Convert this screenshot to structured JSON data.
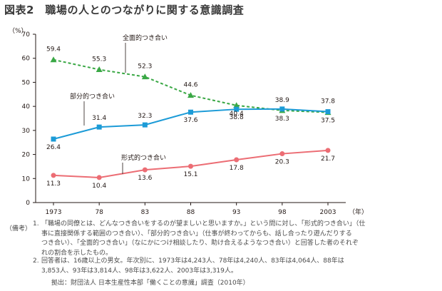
{
  "title": "図表2　職場の人とのつながりに関する意識調査",
  "chart_data": {
    "type": "line",
    "categories": [
      "1973",
      "78",
      "83",
      "88",
      "93",
      "98",
      "2003"
    ],
    "x_unit": "（年）",
    "y_unit": "（%）",
    "ylim": [
      0,
      70
    ],
    "yticks": [
      0,
      10,
      20,
      30,
      40,
      50,
      60,
      70
    ],
    "grid": false,
    "series": [
      {
        "name": "全面的つき合い",
        "values": [
          59.4,
          55.3,
          52.3,
          44.6,
          40.4,
          38.3,
          37.5
        ],
        "value_labels": [
          "59.4",
          "55.3",
          "52.3",
          "44.6",
          "40.4",
          "38.3",
          "37.5"
        ],
        "color": "#3aa845",
        "line_style": "dashed",
        "marker": "triangle"
      },
      {
        "name": "部分的つき合い",
        "values": [
          26.4,
          31.4,
          32.3,
          37.6,
          38.8,
          38.9,
          37.8
        ],
        "value_labels": [
          "26.4",
          "31.4",
          "32.3",
          "37.6",
          "38.8",
          "38.9",
          "37.8"
        ],
        "color": "#1c9bd7",
        "line_style": "solid",
        "marker": "square"
      },
      {
        "name": "形式的つき合い",
        "values": [
          11.3,
          10.4,
          13.6,
          15.1,
          17.8,
          20.3,
          21.7
        ],
        "value_labels": [
          "11.3",
          "10.4",
          "13.6",
          "15.1",
          "17.8",
          "20.3",
          "21.7"
        ],
        "color": "#ec6d74",
        "line_style": "solid",
        "marker": "circle"
      }
    ]
  },
  "notes": {
    "label": "（備考）",
    "items": [
      {
        "num": "1.",
        "lines": [
          "「職場の同僚とは、どんなつき合いをするのが望ましいと思いますか。」という問に対し、「形式的つき合い」（仕",
          "事に直接関係する範囲のつき合い）、「部分的つき合い」（仕事が終わってからも、話し合ったり遊んだりする",
          "つき合い）、「全面的つき合い」（なにかにつけ相談したり、助け合えるようなつき合い）と回答した者のそれぞ",
          "れの割合を示したもの。"
        ]
      },
      {
        "num": "2.",
        "lines": [
          "回答者は、16歳以上の男女。年次別に、1973年は4,243人、78年は4,240人、83年は4,064人、88年は",
          "3,853人、93年は3,814人、98年は3,622人、2003年は3,319人。"
        ]
      }
    ],
    "source": "拠出：財団法人 日本生産性本部「働くことの意識」調査（2010年）"
  }
}
